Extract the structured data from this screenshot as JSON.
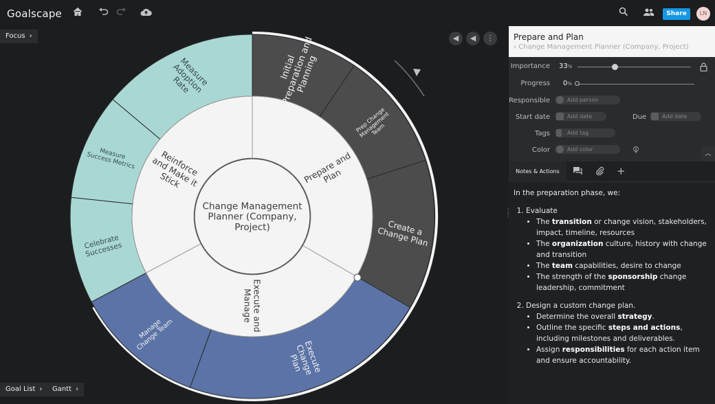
{
  "app": {
    "logo": "Goalscape"
  },
  "toolbar": {
    "share": "Share",
    "avatar": "LN",
    "icons": [
      "home-icon",
      "undo-icon",
      "redo-icon",
      "cloud-upload-icon",
      "search-icon",
      "people-icon"
    ]
  },
  "left_pills": {
    "focus": "Focus",
    "goal_list": "Goal List",
    "gantt": "Gantt"
  },
  "chart": {
    "center": [
      "Change Management",
      "Planner (Company,",
      "Project)"
    ],
    "level1": [
      {
        "label": [
          "Prepare and",
          "Plan"
        ]
      },
      {
        "label": [
          "Execute and",
          "Manage"
        ]
      },
      {
        "label": [
          "Reinforce",
          "and Make it",
          "Stick"
        ]
      }
    ],
    "level2": [
      {
        "label": [
          "Initial",
          "Preparation and",
          "Planning"
        ]
      },
      {
        "label": [
          "Prep Change",
          "Management",
          "Team"
        ]
      },
      {
        "label": [
          "Create a",
          "Change Plan"
        ]
      },
      {
        "label": [
          "Execute",
          "Change",
          "Plan"
        ]
      },
      {
        "label": [
          "Manage",
          "Change Team"
        ]
      },
      {
        "label": [
          "Celebrate",
          "Successes"
        ]
      },
      {
        "label": [
          "Measure",
          "Success Metrics"
        ]
      },
      {
        "label": [
          "Measure",
          "Adoption",
          "Rate"
        ]
      }
    ],
    "colors": {
      "dark": "#4c4c4d",
      "blue": "#5b73a6",
      "teal": "#a9d8d4",
      "light": "#f4f4f4"
    }
  },
  "panel": {
    "title": "Prepare and Plan",
    "subtitle": "› Change Management Planner (Company, Project)",
    "importance_label": "Importance",
    "importance_value": "33",
    "importance_fraction": 0.33,
    "progress_label": "Progress",
    "progress_value": "0",
    "percent_sign": "%",
    "responsible_label": "Responsible",
    "responsible_placeholder": "Add person",
    "start_label": "Start date",
    "start_placeholder": "Add date",
    "due_label": "Due",
    "due_placeholder": "Add date",
    "tags_label": "Tags",
    "tags_placeholder": "Add tag",
    "color_label": "Color",
    "color_placeholder": "Add color",
    "tab_notes": "Notes & Actions",
    "notes": {
      "intro": "In the preparation phase, we:",
      "evaluate": "Evaluate",
      "bullets1": [
        {
          "pre": "The ",
          "b": "transition",
          "post": " or change vision, stakeholders, impact, timeline, resources"
        },
        {
          "pre": "The ",
          "b": "organization",
          "post": " culture, history with change and transition"
        },
        {
          "pre": "The ",
          "b": "team",
          "post": " capabilities, desire to change"
        },
        {
          "pre": "The strength of the ",
          "b": "sponsorship",
          "post": " change leadership, commitment"
        }
      ],
      "design": "Design a custom change plan.",
      "bullets2": [
        {
          "pre": "Determine the overall ",
          "b": "strategy",
          "post": "."
        },
        {
          "pre": "Outline the specific ",
          "b": "steps and actions",
          "post": ", including milestones and deliverables."
        },
        {
          "pre": "Assign ",
          "b": "responsibilities",
          "post": " for each action item and ensure accountability."
        }
      ]
    }
  }
}
